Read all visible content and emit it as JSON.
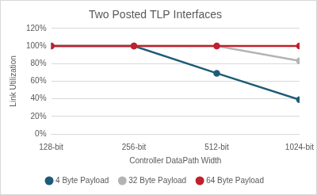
{
  "chart_data": {
    "type": "line",
    "title": "Two Posted TLP Interfaces",
    "x_label": "Controller DataPath Width",
    "y_label": "Link Utilization",
    "categories": [
      "128-bit",
      "256-bit",
      "512-bit",
      "1024-bit"
    ],
    "series": [
      {
        "name": "4 Byte Payload",
        "color": "#1f5b79",
        "values": [
          100,
          100,
          69,
          39
        ]
      },
      {
        "name": "32 Byte Payload",
        "color": "#b4b4b4",
        "values": [
          100,
          100,
          100,
          83
        ]
      },
      {
        "name": "64 Byte Payload",
        "color": "#c0212b",
        "values": [
          100,
          100,
          100,
          100
        ]
      }
    ],
    "ylim": [
      0,
      120
    ],
    "yticks": [
      {
        "value": 0,
        "label": "0%"
      },
      {
        "value": 20,
        "label": "20%"
      },
      {
        "value": 40,
        "label": "40%"
      },
      {
        "value": 60,
        "label": "60%"
      },
      {
        "value": 80,
        "label": "80%"
      },
      {
        "value": 100,
        "label": "100%"
      },
      {
        "value": 120,
        "label": "120%"
      }
    ],
    "grid": true,
    "legend": "bottom",
    "marker": "circle",
    "line_style": "solid"
  }
}
